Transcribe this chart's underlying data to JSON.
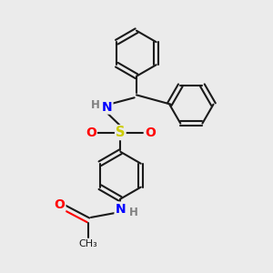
{
  "background_color": "#ebebeb",
  "bond_color": "#1a1a1a",
  "N_color": "#0000ff",
  "O_color": "#ff0000",
  "S_color": "#cccc00",
  "H_color": "#808080",
  "figsize": [
    3.0,
    3.0
  ],
  "dpi": 100,
  "xlim": [
    0,
    10
  ],
  "ylim": [
    0,
    10
  ]
}
